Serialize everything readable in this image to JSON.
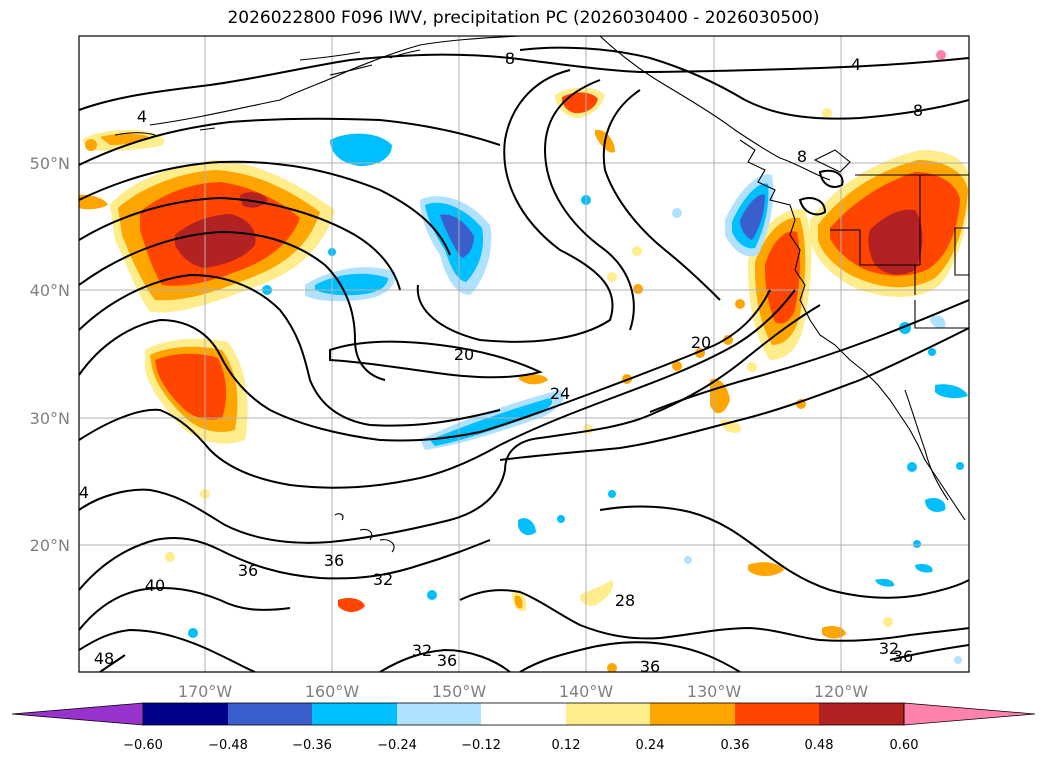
{
  "title": "2026022800 F096 IWV, precipitation PC (2026030400 - 2026030500)",
  "map": {
    "lon_labels": [
      "170°W",
      "160°W",
      "150°W",
      "140°W",
      "130°W",
      "120°W"
    ],
    "lat_labels": [
      "50°N",
      "40°N",
      "30°N",
      "20°N"
    ],
    "contour_labels": [
      "4",
      "4",
      "4",
      "8",
      "8",
      "8",
      "20",
      "20",
      "24",
      "28",
      "32",
      "32",
      "32",
      "36",
      "36",
      "36",
      "36",
      "40",
      "48"
    ]
  },
  "colorbar": {
    "ticks": [
      "−0.60",
      "−0.48",
      "−0.36",
      "−0.24",
      "−0.12",
      "0.12",
      "0.24",
      "0.36",
      "0.48",
      "0.60"
    ],
    "colors": [
      "#9932cc",
      "#00008b",
      "#3a5fcd",
      "#00bfff",
      "#b0e2ff",
      "#ffffff",
      "#ffec8b",
      "#ffa500",
      "#ff4500",
      "#b22222",
      "#ff82ab"
    ]
  }
}
